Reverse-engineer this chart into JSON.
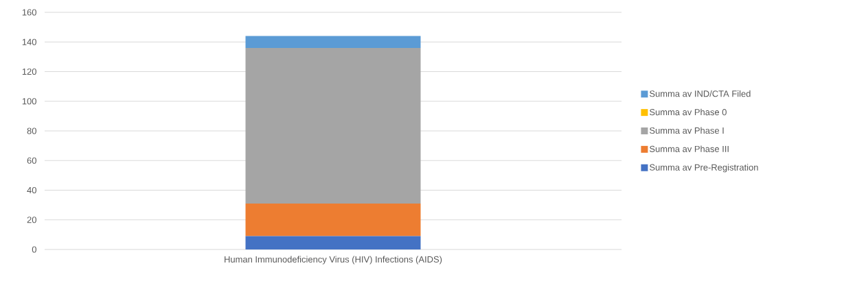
{
  "chart_data": {
    "type": "bar",
    "stacked": true,
    "categories": [
      "Human Immunodeficiency Virus (HIV) Infections (AIDS)"
    ],
    "series": [
      {
        "name": "Summa av Pre-Registration",
        "color": "#4472c4",
        "values": [
          9
        ]
      },
      {
        "name": "Summa av Phase III",
        "color": "#ed7d31",
        "values": [
          22
        ]
      },
      {
        "name": "Summa av Phase I",
        "color": "#a5a5a5",
        "values": [
          105
        ]
      },
      {
        "name": "Summa av Phase 0",
        "color": "#ffc000",
        "values": [
          0
        ]
      },
      {
        "name": "Summa av IND/CTA Filed",
        "color": "#5b9bd5",
        "values": [
          8
        ]
      }
    ],
    "ylim": [
      0,
      160
    ],
    "yticks": [
      0,
      20,
      40,
      60,
      80,
      100,
      120,
      140,
      160
    ],
    "grid": "y",
    "legend": "right"
  }
}
